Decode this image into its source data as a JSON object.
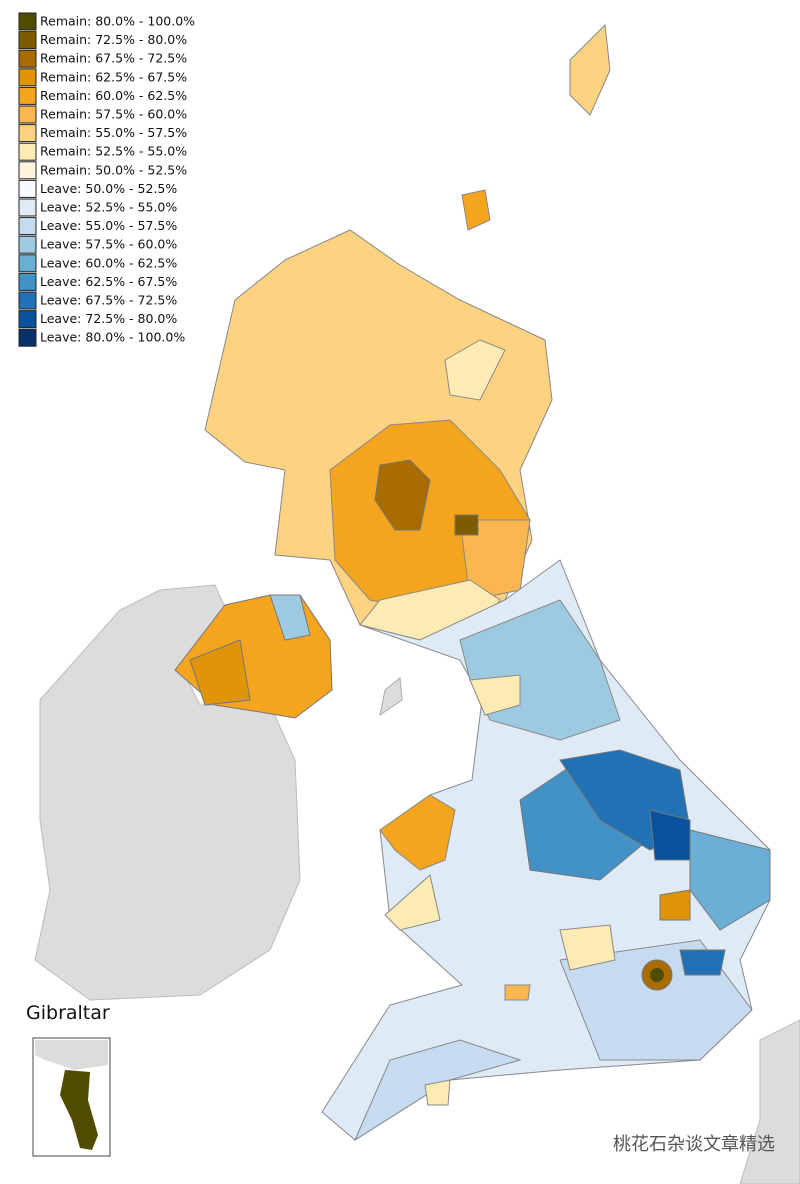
{
  "legend": {
    "items": [
      {
        "label": "Remain: 80.0% - 100.0%",
        "color": "#4f4c00"
      },
      {
        "label": "Remain: 72.5% - 80.0%",
        "color": "#7d5c00"
      },
      {
        "label": "Remain: 67.5% - 72.5%",
        "color": "#a86c00"
      },
      {
        "label": "Remain: 62.5% - 67.5%",
        "color": "#e09408"
      },
      {
        "label": "Remain: 60.0% - 62.5%",
        "color": "#f5a41e"
      },
      {
        "label": "Remain: 57.5% - 60.0%",
        "color": "#fbb74f"
      },
      {
        "label": "Remain: 55.0% - 57.5%",
        "color": "#fdd281"
      },
      {
        "label": "Remain: 52.5% - 55.0%",
        "color": "#feeab3"
      },
      {
        "label": "Remain: 50.0% - 52.5%",
        "color": "#fff5dc"
      },
      {
        "label": "Leave: 50.0% - 52.5%",
        "color": "#f7fbff"
      },
      {
        "label": "Leave: 52.5% - 55.0%",
        "color": "#deebf7"
      },
      {
        "label": "Leave: 55.0% - 57.5%",
        "color": "#c6dbef"
      },
      {
        "label": "Leave: 57.5% - 60.0%",
        "color": "#9ecae1"
      },
      {
        "label": "Leave: 60.0% - 62.5%",
        "color": "#6baed6"
      },
      {
        "label": "Leave: 62.5% - 67.5%",
        "color": "#4292c6"
      },
      {
        "label": "Leave: 67.5% - 72.5%",
        "color": "#2171b5"
      },
      {
        "label": "Leave: 72.5% - 80.0%",
        "color": "#08519c"
      },
      {
        "label": "Leave: 80.0% - 100.0%",
        "color": "#08306b"
      }
    ]
  },
  "inset": {
    "title": "Gibraltar"
  },
  "watermark": "桃花石杂谈文章精选"
}
